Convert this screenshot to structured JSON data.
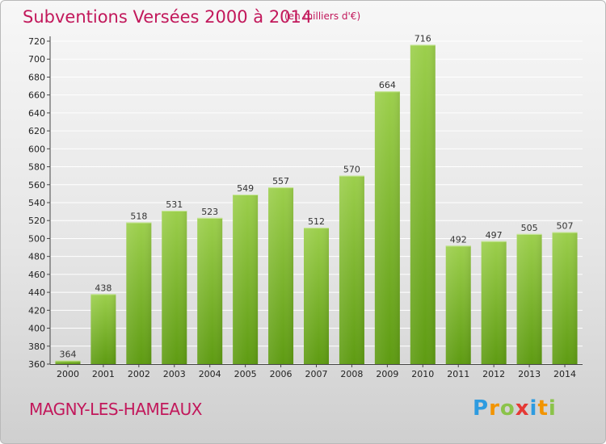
{
  "header": {
    "title": "Subventions Versées 2000 à 2014",
    "unit": "(en milliers d'€)"
  },
  "footer": {
    "city": "MAGNY-LES-HAMEAUX",
    "logo_letters": [
      "P",
      "r",
      "o",
      "x",
      "i",
      "t",
      "i"
    ]
  },
  "colors": {
    "title": "#c2185b",
    "bar_top": "#9ccf4c",
    "bar_bottom": "#5e9b12",
    "grid": "#ffffff"
  },
  "chart_data": {
    "type": "bar",
    "categories": [
      "2000",
      "2001",
      "2002",
      "2003",
      "2004",
      "2005",
      "2006",
      "2007",
      "2008",
      "2009",
      "2010",
      "2011",
      "2012",
      "2013",
      "2014"
    ],
    "values": [
      364,
      438,
      518,
      531,
      523,
      549,
      557,
      512,
      570,
      664,
      716,
      492,
      497,
      505,
      507
    ],
    "title": "Subventions Versées 2000 à 2014",
    "subtitle": "(en milliers d'€)",
    "xlabel": "",
    "ylabel": "",
    "ylim": [
      360,
      720
    ],
    "ytick_step": 20,
    "grid": true,
    "data_labels": true
  }
}
